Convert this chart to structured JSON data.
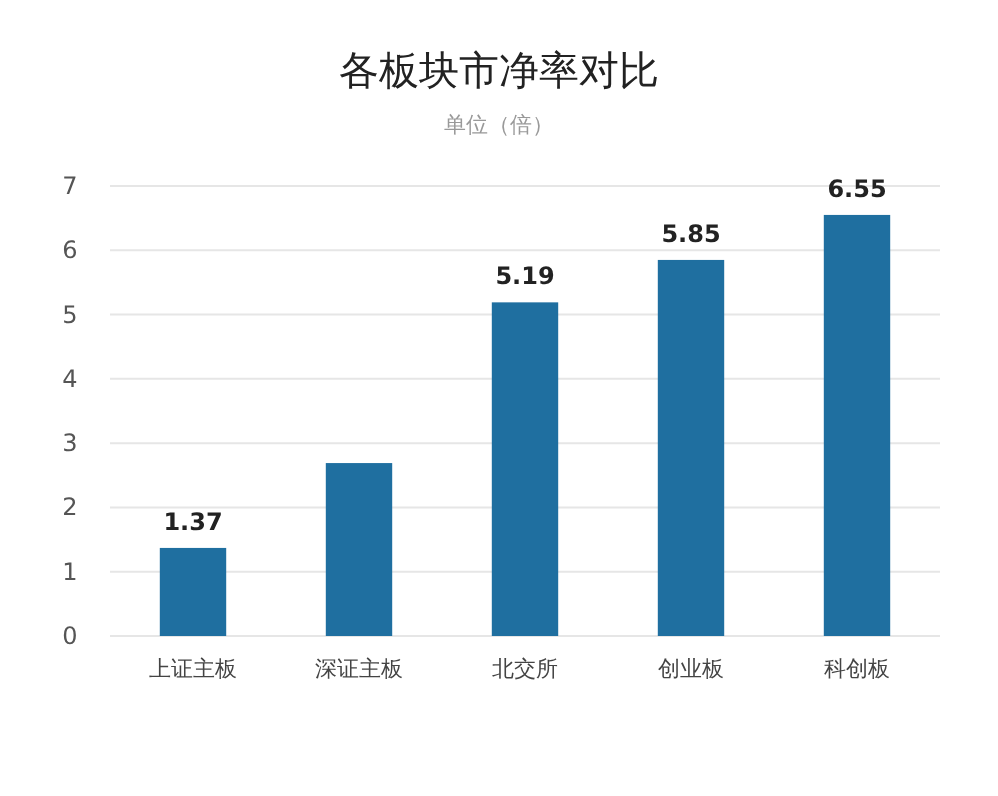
{
  "chart_data": {
    "type": "bar",
    "title": "各板块市净率对比",
    "subtitle": "单位（倍）",
    "categories": [
      "上证主板",
      "深证主板",
      "北交所",
      "创业板",
      "科创板"
    ],
    "values": [
      1.37,
      2.69,
      5.19,
      5.85,
      6.55
    ],
    "value_labels": [
      "1.37",
      null,
      "5.19",
      "5.85",
      "6.55"
    ],
    "color": "#1f6fa0",
    "ylim": [
      0,
      7
    ],
    "yticks": [
      0,
      1,
      2,
      3,
      4,
      5,
      6,
      7
    ],
    "grid": "y"
  }
}
